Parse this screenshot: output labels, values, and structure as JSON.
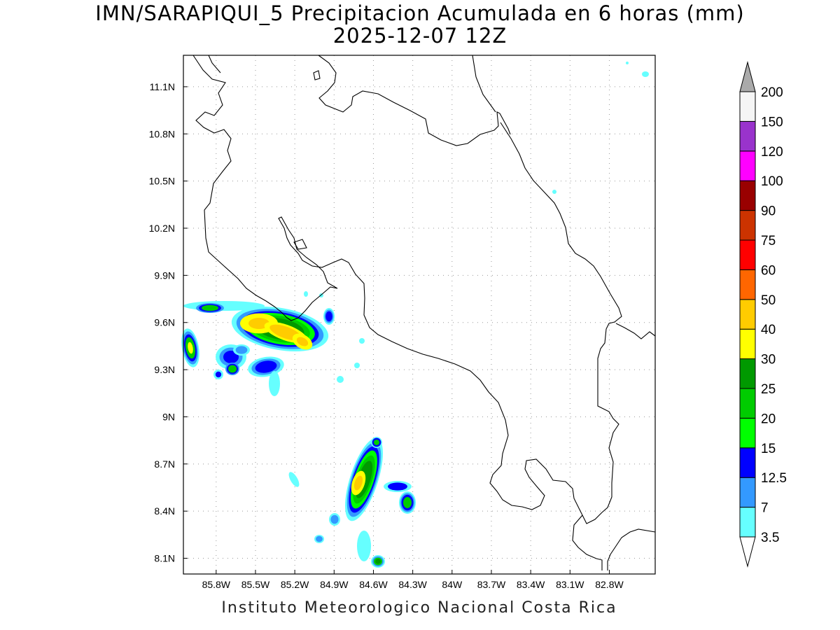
{
  "title": {
    "line1": "IMN/SARAPIQUI_5 Precipitacion Acumulada en 6 horas (mm)",
    "line2": "2025-12-07 12Z"
  },
  "credit": "Instituto Meteorologico Nacional Costa Rica",
  "map": {
    "lon_range": [
      -86.05,
      -82.45
    ],
    "lat_range": [
      8.0,
      11.3
    ],
    "lon_ticks": [
      {
        "value": -85.8,
        "label": "85.8W"
      },
      {
        "value": -85.5,
        "label": "85.5W"
      },
      {
        "value": -85.2,
        "label": "85.2W"
      },
      {
        "value": -84.9,
        "label": "84.9W"
      },
      {
        "value": -84.6,
        "label": "84.6W"
      },
      {
        "value": -84.3,
        "label": "84.3W"
      },
      {
        "value": -84.0,
        "label": "84W"
      },
      {
        "value": -83.7,
        "label": "83.7W"
      },
      {
        "value": -83.4,
        "label": "83.4W"
      },
      {
        "value": -83.1,
        "label": "83.1W"
      },
      {
        "value": -82.8,
        "label": "82.8W"
      }
    ],
    "lat_ticks": [
      {
        "value": 8.1,
        "label": "8.1N"
      },
      {
        "value": 8.4,
        "label": "8.4N"
      },
      {
        "value": 8.7,
        "label": "8.7N"
      },
      {
        "value": 9.0,
        "label": "9N"
      },
      {
        "value": 9.3,
        "label": "9.3N"
      },
      {
        "value": 9.6,
        "label": "9.6N"
      },
      {
        "value": 9.9,
        "label": "9.9N"
      },
      {
        "value": 10.2,
        "label": "10.2N"
      },
      {
        "value": 10.5,
        "label": "10.5N"
      },
      {
        "value": 10.8,
        "label": "10.8N"
      },
      {
        "value": 11.1,
        "label": "11.1N"
      }
    ],
    "gridlines": "dotted"
  },
  "colorbar": {
    "levels": [
      "3.5",
      "7",
      "12.5",
      "15",
      "20",
      "25",
      "30",
      "40",
      "50",
      "60",
      "75",
      "90",
      "100",
      "120",
      "150",
      "200"
    ],
    "colors": [
      "#66ffff",
      "#3399ff",
      "#0000ff",
      "#00ff00",
      "#00cc00",
      "#009900",
      "#ffff00",
      "#ffcc00",
      "#ff6600",
      "#ff0000",
      "#cc3300",
      "#990000",
      "#ff00ff",
      "#9933cc",
      "#f5f5f5",
      "#aaaaaa"
    ]
  }
}
